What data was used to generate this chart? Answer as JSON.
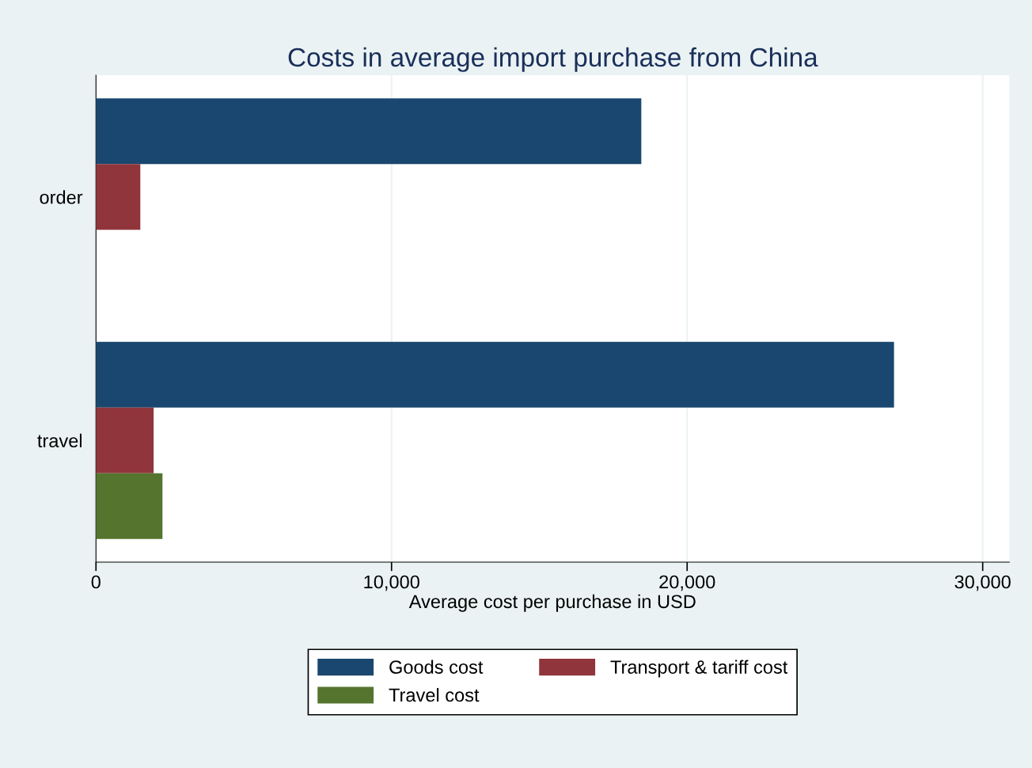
{
  "chart_data": {
    "type": "bar",
    "orientation": "horizontal",
    "title": "Costs in average import purchase from China",
    "xlabel": "Average cost per purchase in USD",
    "categories": [
      "order",
      "travel"
    ],
    "series": [
      {
        "name": "Goods cost",
        "color": "#1a476f",
        "values": [
          18450,
          27000
        ]
      },
      {
        "name": "Transport & tariff cost",
        "color": "#90353b",
        "values": [
          1500,
          1950
        ]
      },
      {
        "name": "Travel cost",
        "color": "#55752f",
        "values": [
          null,
          2250
        ]
      }
    ],
    "xlim": [
      0,
      30900
    ],
    "xticks": [
      0,
      {
        "value": 10000,
        "label": "10,000"
      },
      {
        "value": 20000,
        "label": "20,000"
      },
      {
        "value": 30000,
        "label": "30,000"
      }
    ],
    "grid": "x",
    "legend": "bottom"
  }
}
